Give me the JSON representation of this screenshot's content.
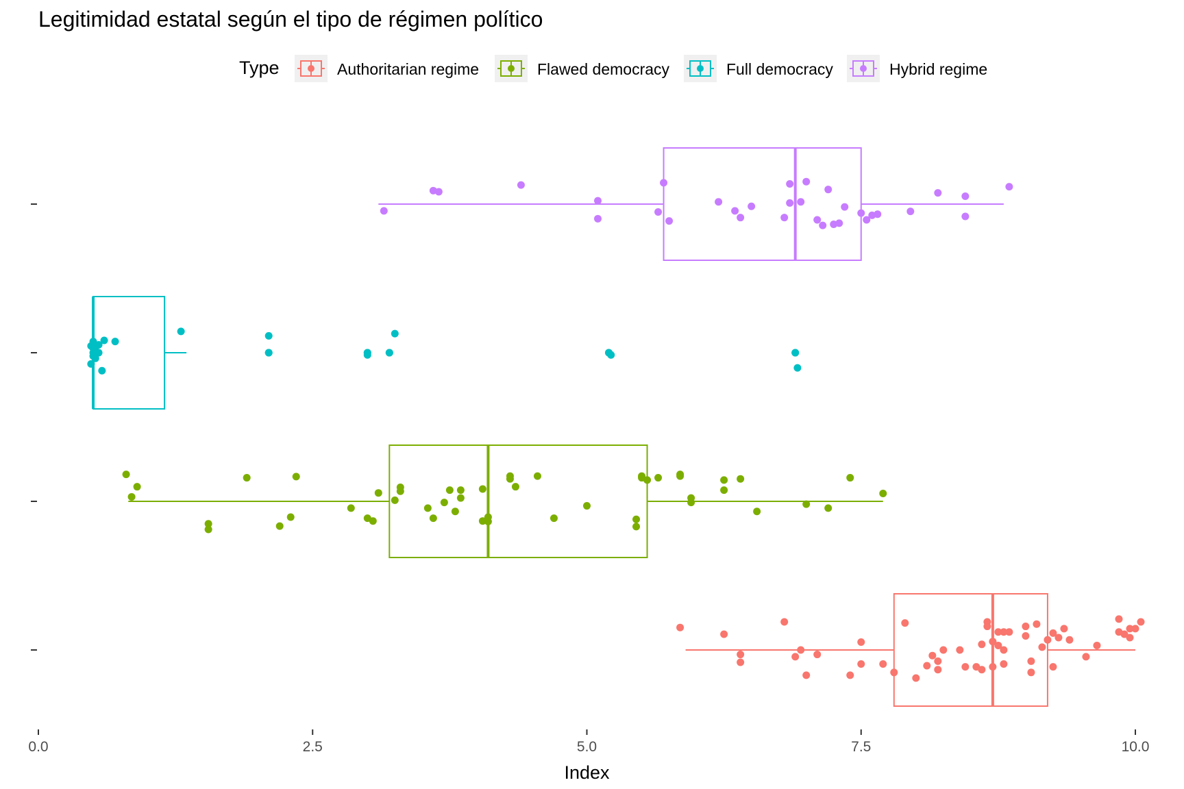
{
  "chart_data": {
    "type": "boxplot",
    "title": "Legitimidad estatal según el tipo de régimen político",
    "xlabel": "Index",
    "ylabel": "",
    "xlim": [
      0,
      10
    ],
    "x_ticks": [
      "0.0",
      "2.5",
      "5.0",
      "7.5",
      "10.0"
    ],
    "legend_title": "Type",
    "legend_position": "top",
    "grid": false,
    "colors": {
      "Authoritarian regime": "#F8766D",
      "Flawed democracy": "#7CAE00",
      "Full democracy": "#00BFC4",
      "Hybrid regime": "#C77CFF"
    },
    "series": [
      {
        "name": "Authoritarian regime",
        "box": {
          "min": 5.9,
          "q1": 7.8,
          "median": 8.7,
          "q3": 9.2,
          "max": 10.0
        },
        "points": [
          5.85,
          6.25,
          6.4,
          6.4,
          6.8,
          6.9,
          6.95,
          7.0,
          7.1,
          7.4,
          7.5,
          7.5,
          7.7,
          7.8,
          7.9,
          8.0,
          8.1,
          8.15,
          8.2,
          8.2,
          8.25,
          8.4,
          8.45,
          8.55,
          8.6,
          8.6,
          8.65,
          8.65,
          8.7,
          8.7,
          8.75,
          8.75,
          8.8,
          8.8,
          8.8,
          8.85,
          9.0,
          9.0,
          9.05,
          9.05,
          9.1,
          9.15,
          9.2,
          9.25,
          9.25,
          9.3,
          9.35,
          9.4,
          9.55,
          9.65,
          9.85,
          9.85,
          9.9,
          9.95,
          9.95,
          10.0,
          10.05
        ],
        "jitter": [
          0.4,
          0.28,
          -0.08,
          -0.22,
          0.5,
          -0.12,
          0.0,
          -0.45,
          -0.08,
          -0.45,
          0.14,
          -0.25,
          -0.25,
          -0.4,
          0.48,
          -0.5,
          -0.28,
          -0.1,
          -0.35,
          -0.2,
          0.0,
          0.0,
          -0.3,
          -0.3,
          0.1,
          -0.35,
          0.5,
          0.42,
          -0.3,
          0.15,
          0.32,
          0.08,
          0.32,
          0.0,
          -0.25,
          0.32,
          0.25,
          0.42,
          -0.2,
          -0.4,
          0.46,
          0.05,
          0.18,
          -0.3,
          0.3,
          0.22,
          0.38,
          0.18,
          -0.12,
          0.08,
          0.55,
          0.32,
          0.28,
          0.38,
          0.22,
          0.38,
          0.5
        ]
      },
      {
        "name": "Flawed democracy",
        "box": {
          "min": 0.82,
          "q1": 3.2,
          "median": 4.1,
          "q3": 5.55,
          "max": 7.7
        },
        "points": [
          0.8,
          0.85,
          0.9,
          1.55,
          1.55,
          1.9,
          2.2,
          2.3,
          2.35,
          2.85,
          3.0,
          3.05,
          3.1,
          3.25,
          3.3,
          3.3,
          3.55,
          3.6,
          3.7,
          3.75,
          3.8,
          3.85,
          3.85,
          4.05,
          4.05,
          4.1,
          4.1,
          4.3,
          4.3,
          4.35,
          4.55,
          4.7,
          5.0,
          5.45,
          5.45,
          5.5,
          5.5,
          5.55,
          5.65,
          5.85,
          5.85,
          5.95,
          5.95,
          6.25,
          6.25,
          6.4,
          6.55,
          7.0,
          7.2,
          7.4,
          7.7
        ],
        "jitter": [
          0.48,
          0.08,
          0.26,
          -0.4,
          -0.5,
          0.42,
          -0.44,
          -0.28,
          0.44,
          -0.12,
          -0.3,
          -0.35,
          0.15,
          0.02,
          0.25,
          0.18,
          -0.12,
          -0.3,
          -0.02,
          0.2,
          -0.18,
          0.06,
          0.2,
          -0.35,
          0.22,
          -0.28,
          -0.36,
          0.4,
          0.45,
          0.26,
          0.45,
          -0.3,
          -0.08,
          -0.32,
          -0.45,
          0.42,
          0.45,
          0.38,
          0.42,
          0.45,
          0.48,
          -0.02,
          0.06,
          0.2,
          0.38,
          0.4,
          -0.18,
          -0.05,
          -0.12,
          0.42,
          0.14
        ]
      },
      {
        "name": "Full democracy",
        "box": {
          "min": 0.5,
          "q1": 0.5,
          "median": 0.5,
          "q3": 1.15,
          "max": 1.35
        },
        "points": [
          0.48,
          0.48,
          0.5,
          0.5,
          0.5,
          0.5,
          0.5,
          0.52,
          0.52,
          0.52,
          0.55,
          0.55,
          0.58,
          0.6,
          0.7,
          1.3,
          2.1,
          2.1,
          2.1,
          3.0,
          3.0,
          3.0,
          3.2,
          3.2,
          3.25,
          5.2,
          5.2,
          5.22,
          6.9,
          6.9,
          6.92
        ],
        "jitter": [
          0.12,
          -0.2,
          0.14,
          0.08,
          0.2,
          0.0,
          -0.06,
          0.1,
          -0.1,
          0.0,
          0.14,
          0.0,
          -0.32,
          0.22,
          0.2,
          0.38,
          0.3,
          0.0,
          0.0,
          0.0,
          0.0,
          -0.04,
          0.0,
          0.0,
          0.34,
          0.0,
          0.0,
          -0.04,
          0.0,
          0.0,
          -0.27
        ]
      },
      {
        "name": "Hybrid regime",
        "box": {
          "min": 3.1,
          "q1": 5.7,
          "median": 6.9,
          "q3": 7.5,
          "max": 8.8
        },
        "points": [
          3.15,
          3.6,
          3.65,
          4.4,
          5.1,
          5.1,
          5.65,
          5.7,
          5.75,
          6.2,
          6.35,
          6.4,
          6.5,
          6.8,
          6.85,
          6.85,
          6.95,
          7.0,
          7.1,
          7.15,
          7.2,
          7.25,
          7.3,
          7.35,
          7.5,
          7.55,
          7.6,
          7.65,
          7.95,
          8.2,
          8.45,
          8.45,
          8.85
        ],
        "jitter": [
          -0.12,
          0.24,
          0.22,
          0.34,
          0.06,
          -0.26,
          -0.14,
          0.38,
          -0.3,
          0.04,
          -0.12,
          -0.24,
          -0.04,
          -0.24,
          0.36,
          0.02,
          0.04,
          0.4,
          -0.28,
          -0.38,
          0.26,
          -0.36,
          -0.34,
          -0.05,
          -0.16,
          -0.28,
          -0.2,
          -0.18,
          -0.13,
          0.2,
          0.14,
          -0.22,
          0.31
        ]
      }
    ],
    "y_order": [
      "Hybrid regime",
      "Full democracy",
      "Flawed democracy",
      "Authoritarian regime"
    ]
  }
}
